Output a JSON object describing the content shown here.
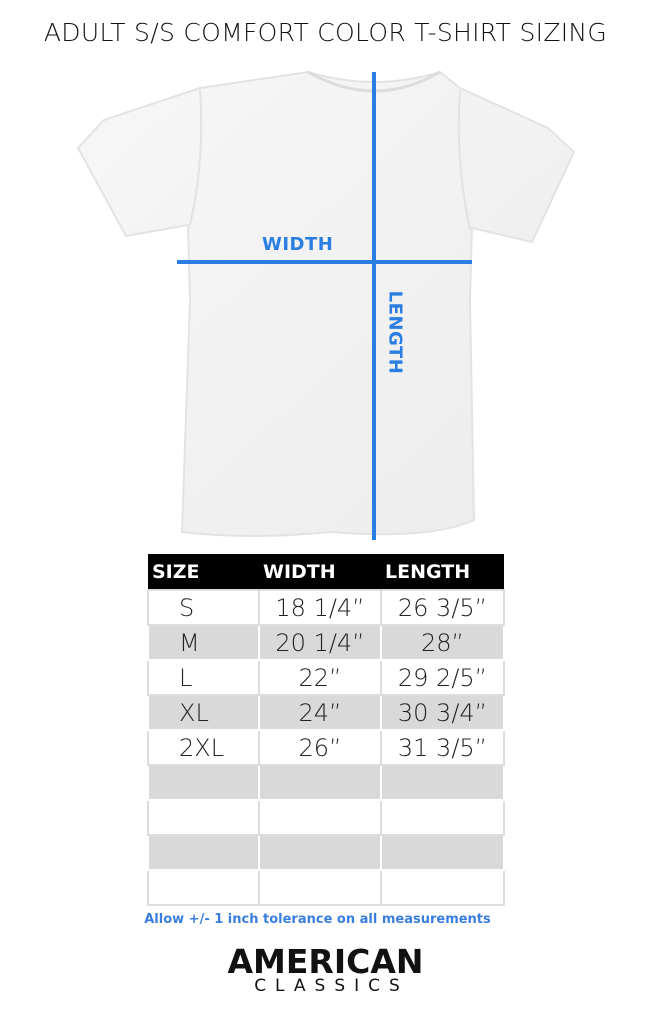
{
  "title": "ADULT S/S COMFORT COLOR T-SHIRT SIZING",
  "diagram": {
    "width_label": "WIDTH",
    "length_label": "LENGTH",
    "line_color": "#2a7de1"
  },
  "table": {
    "headers": [
      "SIZE",
      "WIDTH",
      "LENGTH"
    ],
    "rows": [
      [
        "S",
        "18 1/4”",
        "26 3/5”"
      ],
      [
        "M",
        "20 1/4”",
        "28”"
      ],
      [
        "L",
        "22”",
        "29 2/5”"
      ],
      [
        "XL",
        "24”",
        "30 3/4”"
      ],
      [
        "2XL",
        "26”",
        "31 3/5”"
      ],
      [
        "",
        "",
        ""
      ],
      [
        "",
        "",
        ""
      ],
      [
        "",
        "",
        ""
      ],
      [
        "",
        "",
        ""
      ]
    ]
  },
  "note": "Allow +/- 1 inch tolerance on all measurements",
  "logo": {
    "line1": "AMERICAN",
    "line2": "CLASSICS"
  }
}
